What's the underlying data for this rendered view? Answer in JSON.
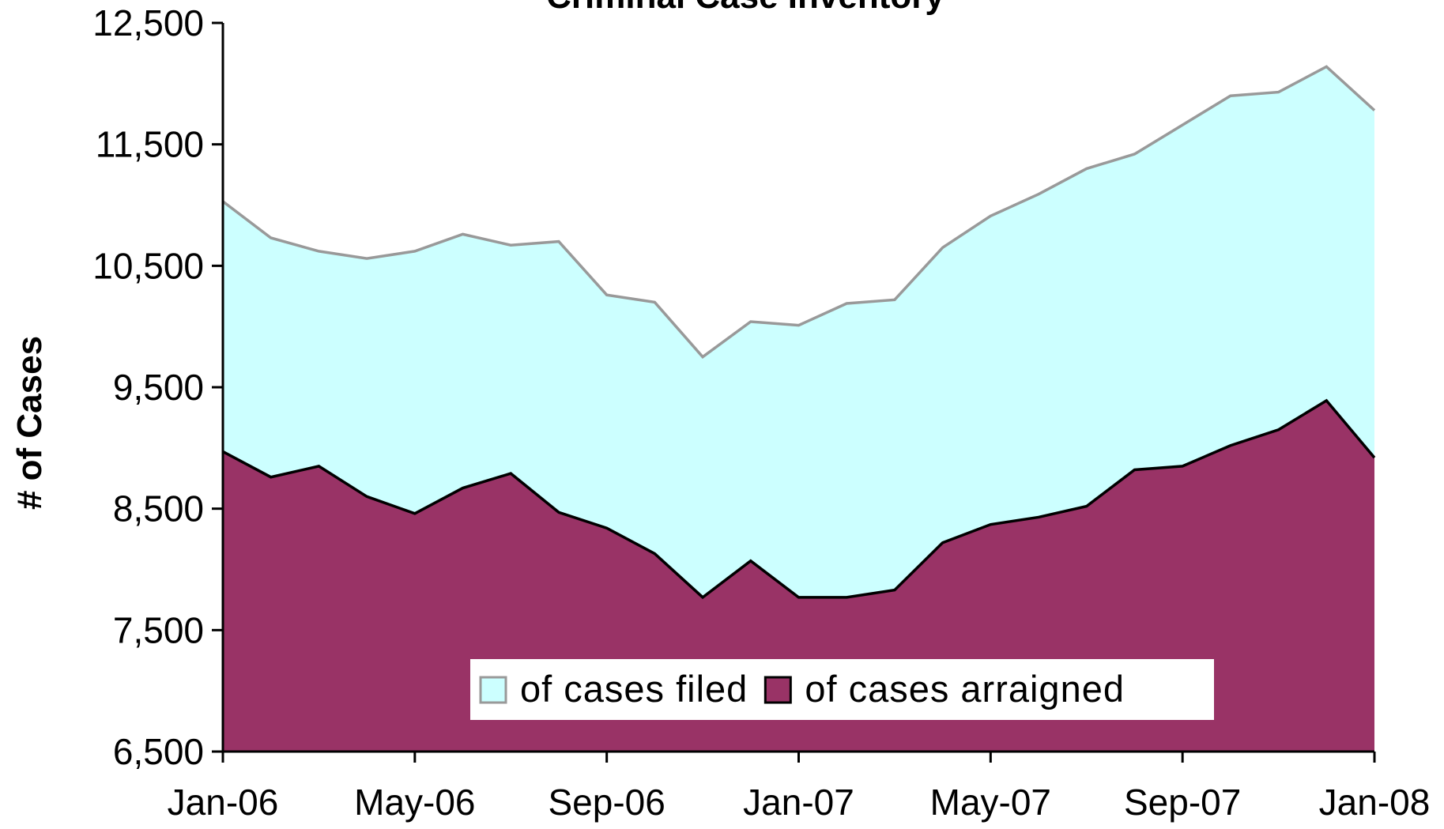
{
  "chart_data": {
    "type": "area",
    "title": "Criminal Case Inventory",
    "y_label": "# of Cases",
    "categories": [
      "Jan-06",
      null,
      null,
      null,
      "May-06",
      null,
      null,
      null,
      "Sep-06",
      null,
      null,
      null,
      "Jan-07",
      null,
      null,
      null,
      "May-07",
      null,
      null,
      null,
      "Sep-07",
      null,
      null,
      null,
      "Jan-08"
    ],
    "series": [
      {
        "name": "of cases filed",
        "color": "#ccffff",
        "line_color": "#999999",
        "values": [
          11030,
          10730,
          10620,
          10560,
          10620,
          10760,
          10670,
          10700,
          10260,
          10200,
          9750,
          10040,
          10010,
          10190,
          10220,
          10650,
          10910,
          11090,
          11300,
          11420,
          11660,
          11900,
          11930,
          12140,
          11780
        ]
      },
      {
        "name": "of cases arraigned",
        "color": "#993366",
        "line_color": "#000000",
        "values": [
          8970,
          8760,
          8850,
          8600,
          8460,
          8670,
          8790,
          8470,
          8340,
          8130,
          7770,
          8070,
          7770,
          7770,
          7830,
          8220,
          8370,
          8430,
          8520,
          8820,
          8850,
          9020,
          9150,
          9390,
          8920
        ]
      }
    ],
    "ylim": [
      6500,
      12500
    ],
    "yticks": [
      {
        "value": 6500,
        "label": "6,500"
      },
      {
        "value": 7500,
        "label": "7,500"
      },
      {
        "value": 8500,
        "label": "8,500"
      },
      {
        "value": 9500,
        "label": "9,500"
      },
      {
        "value": 10500,
        "label": "10,500"
      },
      {
        "value": 11500,
        "label": "11,500"
      },
      {
        "value": 12500,
        "label": "12,500"
      }
    ],
    "legend": "bottom"
  }
}
